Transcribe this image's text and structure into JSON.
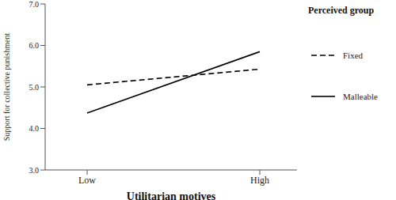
{
  "chart_data": {
    "type": "line",
    "categories": [
      "Low",
      "High"
    ],
    "x_label": "Utilitarian motives",
    "y_label": "Support for collective punishment",
    "legend_title": "Perceived group",
    "legend": "right",
    "grid": false,
    "ylim": [
      3,
      7
    ],
    "yticks": [
      {
        "value": 3,
        "label": "3.0"
      },
      {
        "value": 4,
        "label": "4.0"
      },
      {
        "value": 5,
        "label": "5.0"
      },
      {
        "value": 6,
        "label": "6.0"
      },
      {
        "value": 7,
        "label": "7.0"
      }
    ],
    "series": [
      {
        "name": "Fixed",
        "color": "#000000",
        "line_style": "dashed",
        "marker": "none",
        "values": [
          5.05,
          5.43
        ]
      },
      {
        "name": "Malleable",
        "color": "#000000",
        "line_style": "solid",
        "marker": "none",
        "values": [
          4.37,
          5.85
        ]
      }
    ]
  }
}
